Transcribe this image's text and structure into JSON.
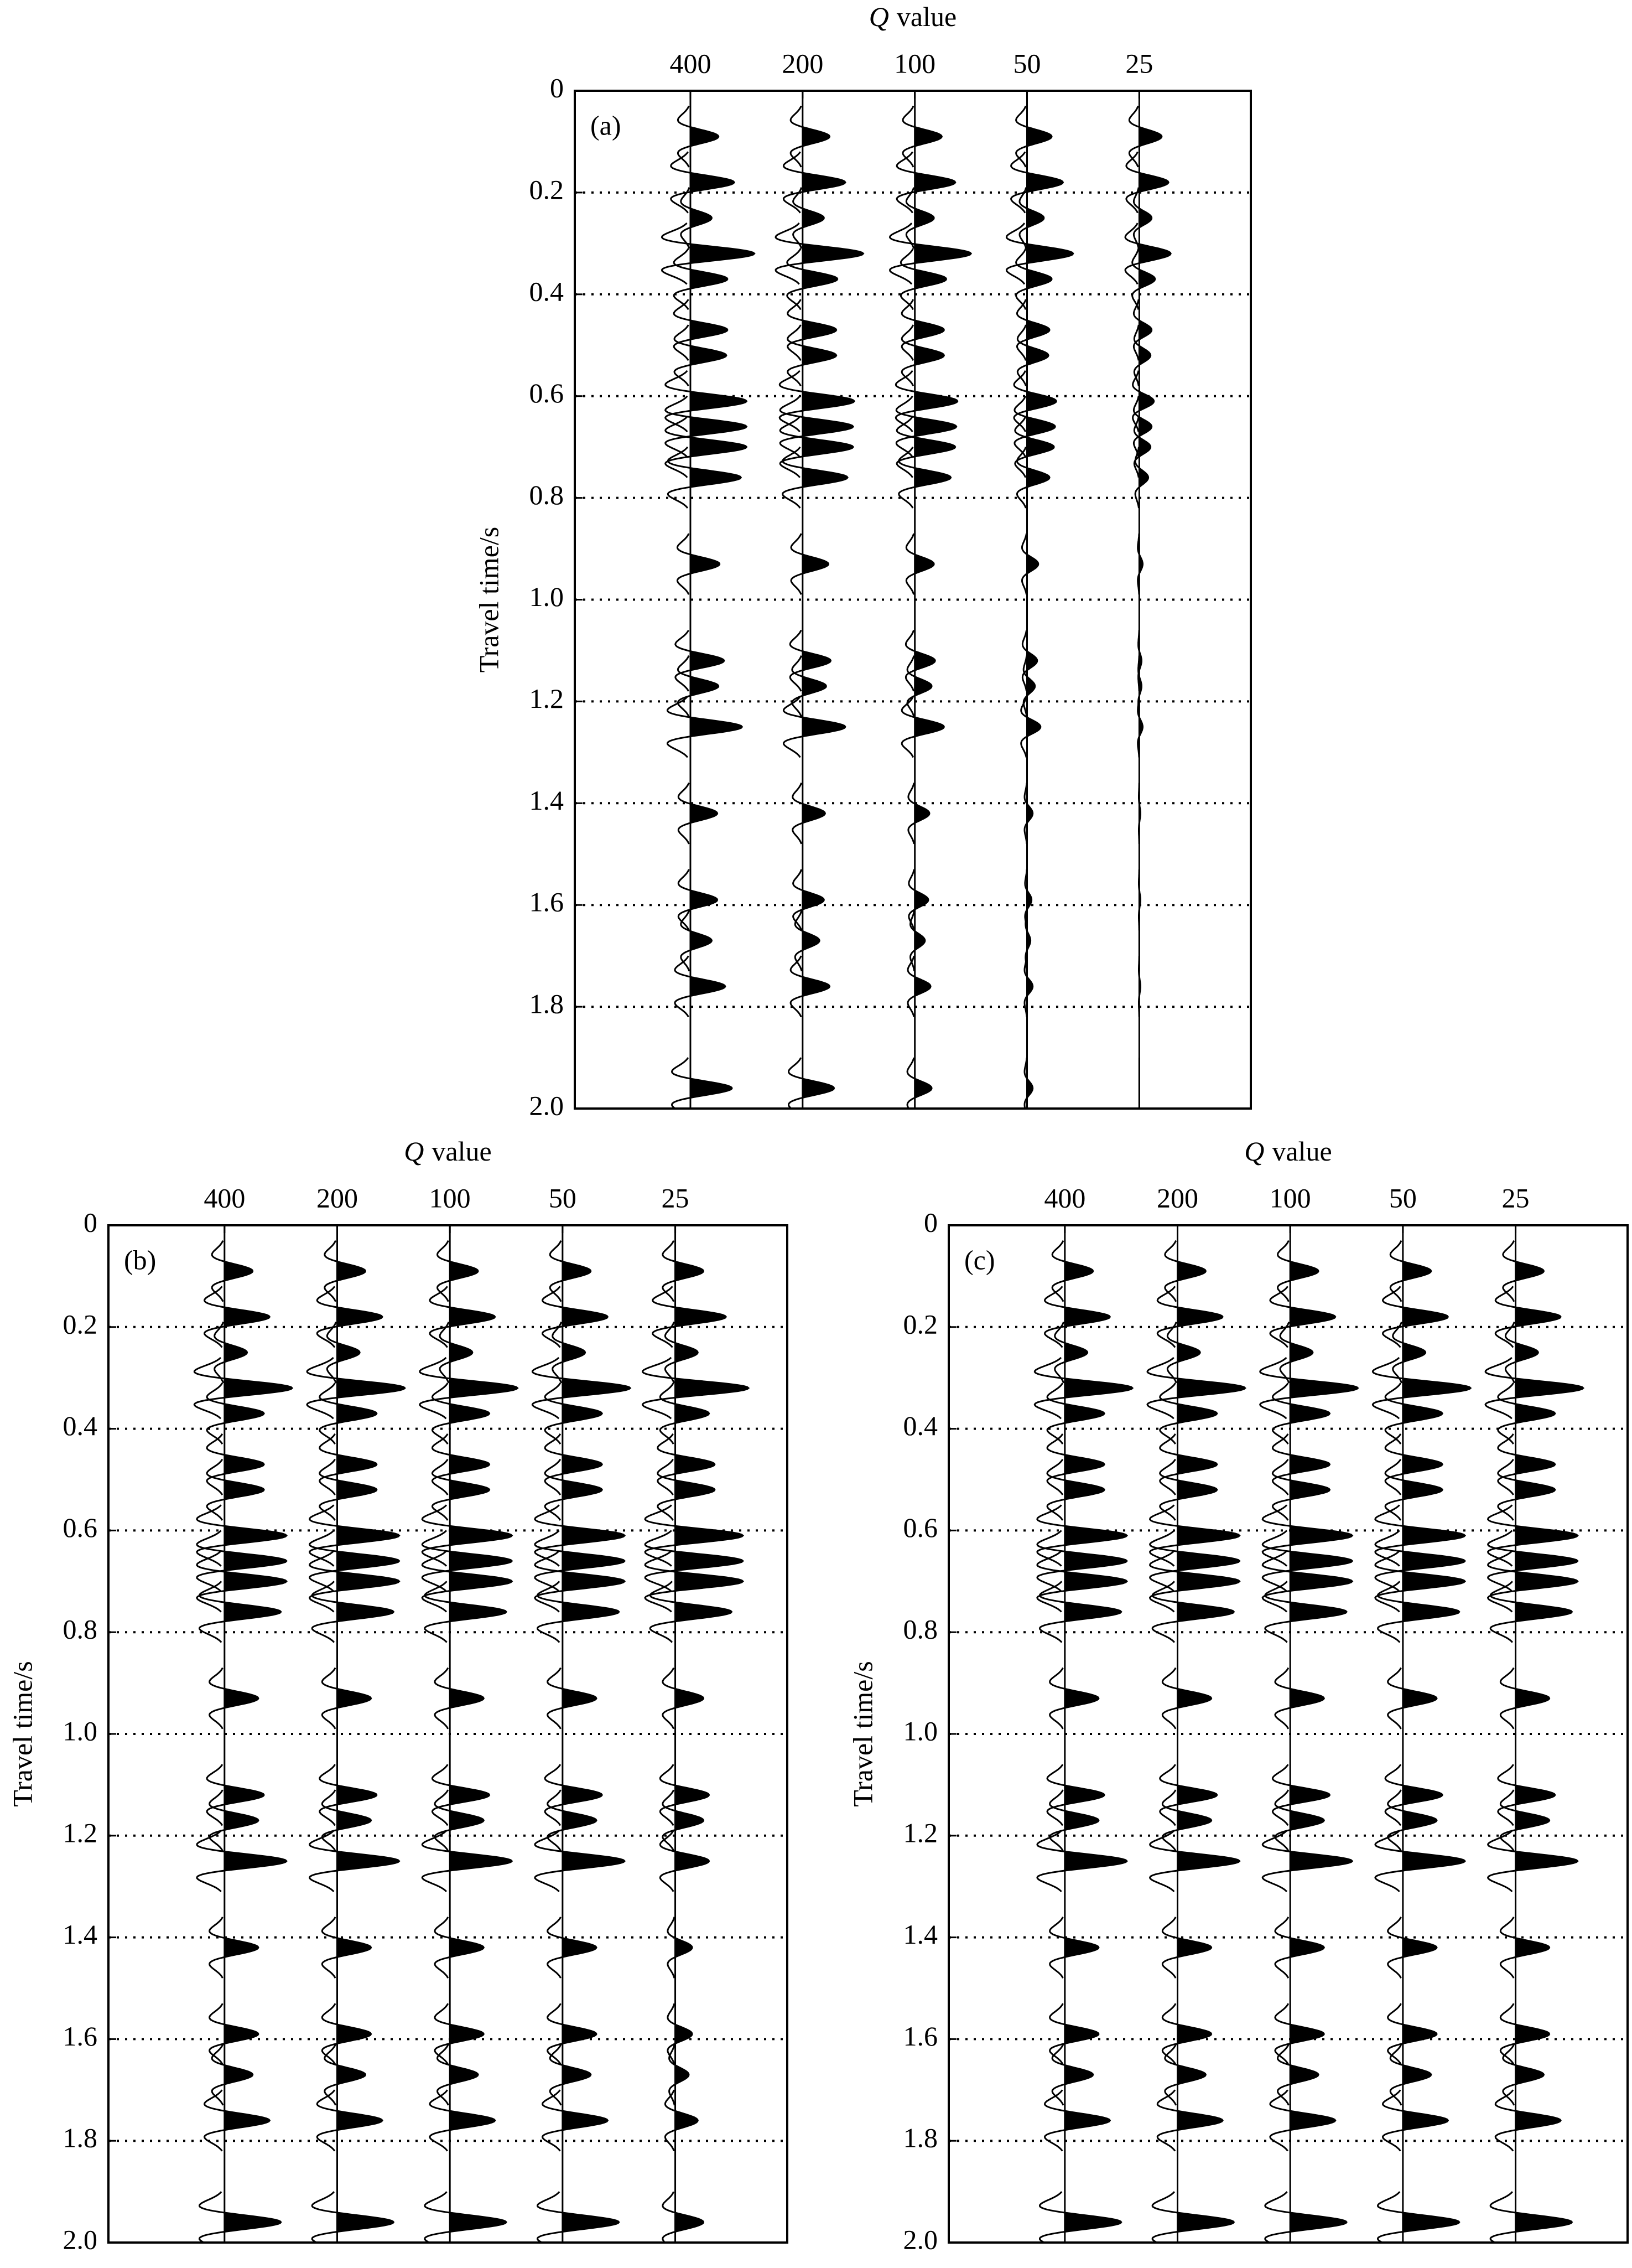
{
  "chart_data": [
    {
      "type": "wiggle",
      "panel_label": "(a)",
      "xlabel_symbol": "Q",
      "xlabel": "value",
      "ylabel": "Travel time/s",
      "categories": [
        "400",
        "200",
        "100",
        "50",
        "25"
      ],
      "reflection_times": [
        0.09,
        0.18,
        0.25,
        0.32,
        0.37,
        0.47,
        0.52,
        0.61,
        0.66,
        0.7,
        0.76,
        0.93,
        1.12,
        1.17,
        1.25,
        1.42,
        1.59,
        1.67,
        1.76,
        1.96
      ],
      "amplitudes": [
        [
          0.25,
          0.39,
          0.19,
          0.57,
          0.33,
          0.33,
          0.32,
          0.5,
          0.5,
          0.5,
          0.45,
          0.26,
          0.3,
          0.25,
          0.46,
          0.24,
          0.24,
          0.19,
          0.31,
          0.37
        ],
        [
          0.24,
          0.38,
          0.19,
          0.54,
          0.31,
          0.3,
          0.3,
          0.46,
          0.45,
          0.45,
          0.4,
          0.23,
          0.25,
          0.21,
          0.38,
          0.2,
          0.19,
          0.15,
          0.24,
          0.28
        ],
        [
          0.24,
          0.36,
          0.17,
          0.5,
          0.28,
          0.26,
          0.26,
          0.38,
          0.37,
          0.36,
          0.32,
          0.17,
          0.18,
          0.15,
          0.26,
          0.13,
          0.12,
          0.09,
          0.14,
          0.15
        ],
        [
          0.22,
          0.32,
          0.15,
          0.41,
          0.22,
          0.2,
          0.19,
          0.26,
          0.25,
          0.24,
          0.2,
          0.1,
          0.09,
          0.07,
          0.12,
          0.05,
          0.04,
          0.03,
          0.05,
          0.05
        ],
        [
          0.2,
          0.26,
          0.11,
          0.28,
          0.14,
          0.11,
          0.1,
          0.13,
          0.11,
          0.1,
          0.08,
          0.03,
          0.02,
          0.02,
          0.03,
          0.01,
          0.01,
          0,
          0.01,
          0
        ]
      ],
      "color": "#000000",
      "ylim": [
        0,
        2
      ],
      "yticks": [
        0,
        0.2,
        0.4,
        0.6,
        0.8,
        {
          "value": 1,
          "label": "1.0"
        },
        1.2,
        1.4,
        1.6,
        1.8,
        {
          "value": 2,
          "label": "2.0"
        }
      ],
      "grid": true
    },
    {
      "type": "wiggle",
      "panel_label": "(b)",
      "xlabel_symbol": "Q",
      "xlabel": "value",
      "ylabel": "Travel time/s",
      "categories": [
        "400",
        "200",
        "100",
        "50",
        "25"
      ],
      "reflection_times": [
        0.09,
        0.18,
        0.25,
        0.32,
        0.37,
        0.47,
        0.52,
        0.61,
        0.66,
        0.7,
        0.76,
        0.93,
        1.12,
        1.17,
        1.25,
        1.42,
        1.59,
        1.67,
        1.76,
        1.96
      ],
      "amplitudes": [
        [
          0.25,
          0.4,
          0.2,
          0.6,
          0.35,
          0.35,
          0.35,
          0.55,
          0.55,
          0.55,
          0.5,
          0.3,
          0.35,
          0.3,
          0.55,
          0.3,
          0.3,
          0.25,
          0.4,
          0.5
        ],
        [
          0.25,
          0.4,
          0.2,
          0.6,
          0.35,
          0.35,
          0.35,
          0.55,
          0.55,
          0.55,
          0.5,
          0.3,
          0.35,
          0.3,
          0.55,
          0.3,
          0.3,
          0.25,
          0.4,
          0.5
        ],
        [
          0.25,
          0.4,
          0.2,
          0.6,
          0.35,
          0.35,
          0.35,
          0.55,
          0.55,
          0.55,
          0.5,
          0.3,
          0.35,
          0.3,
          0.55,
          0.3,
          0.3,
          0.25,
          0.4,
          0.5
        ],
        [
          0.25,
          0.4,
          0.2,
          0.6,
          0.35,
          0.35,
          0.35,
          0.55,
          0.55,
          0.55,
          0.5,
          0.3,
          0.35,
          0.3,
          0.55,
          0.3,
          0.3,
          0.25,
          0.4,
          0.5
        ],
        [
          0.25,
          0.45,
          0.2,
          0.65,
          0.3,
          0.35,
          0.35,
          0.6,
          0.6,
          0.6,
          0.5,
          0.25,
          0.3,
          0.25,
          0.3,
          0.15,
          0.15,
          0.12,
          0.2,
          0.25
        ]
      ],
      "color": "#000000",
      "ylim": [
        0,
        2
      ],
      "yticks": [
        0,
        0.2,
        0.4,
        0.6,
        0.8,
        {
          "value": 1,
          "label": "1.0"
        },
        1.2,
        1.4,
        1.6,
        1.8,
        {
          "value": 2,
          "label": "2.0"
        }
      ],
      "grid": true
    },
    {
      "type": "wiggle",
      "panel_label": "(c)",
      "xlabel_symbol": "Q",
      "xlabel": "value",
      "ylabel": "Travel time/s",
      "categories": [
        "400",
        "200",
        "100",
        "50",
        "25"
      ],
      "reflection_times": [
        0.09,
        0.18,
        0.25,
        0.32,
        0.37,
        0.47,
        0.52,
        0.61,
        0.66,
        0.7,
        0.76,
        0.93,
        1.12,
        1.17,
        1.25,
        1.42,
        1.59,
        1.67,
        1.76,
        1.96
      ],
      "amplitudes": [
        [
          0.25,
          0.4,
          0.2,
          0.6,
          0.35,
          0.35,
          0.35,
          0.55,
          0.55,
          0.55,
          0.5,
          0.3,
          0.35,
          0.3,
          0.55,
          0.3,
          0.3,
          0.25,
          0.4,
          0.5
        ],
        [
          0.25,
          0.4,
          0.2,
          0.6,
          0.35,
          0.35,
          0.35,
          0.55,
          0.55,
          0.55,
          0.5,
          0.3,
          0.35,
          0.3,
          0.55,
          0.3,
          0.3,
          0.25,
          0.4,
          0.5
        ],
        [
          0.25,
          0.4,
          0.2,
          0.6,
          0.35,
          0.35,
          0.35,
          0.55,
          0.55,
          0.55,
          0.5,
          0.3,
          0.35,
          0.3,
          0.55,
          0.3,
          0.3,
          0.25,
          0.4,
          0.5
        ],
        [
          0.25,
          0.4,
          0.2,
          0.6,
          0.35,
          0.35,
          0.35,
          0.55,
          0.55,
          0.55,
          0.5,
          0.3,
          0.35,
          0.3,
          0.55,
          0.3,
          0.3,
          0.25,
          0.4,
          0.5
        ],
        [
          0.25,
          0.4,
          0.2,
          0.6,
          0.35,
          0.35,
          0.35,
          0.55,
          0.55,
          0.55,
          0.5,
          0.3,
          0.35,
          0.3,
          0.55,
          0.3,
          0.3,
          0.25,
          0.4,
          0.5
        ]
      ],
      "color": "#000000",
      "ylim": [
        0,
        2
      ],
      "yticks": [
        0,
        0.2,
        0.4,
        0.6,
        0.8,
        {
          "value": 1,
          "label": "1.0"
        },
        1.2,
        1.4,
        1.6,
        1.8,
        {
          "value": 2,
          "label": "2.0"
        }
      ],
      "grid": true
    }
  ]
}
